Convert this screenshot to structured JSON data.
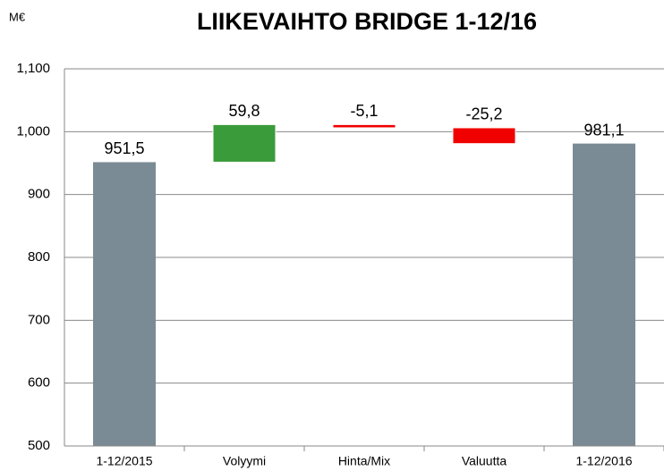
{
  "chart_data": {
    "type": "waterfall",
    "title": "LIIKEVAIHTO BRIDGE 1-12/16",
    "y_label": "M€",
    "categories": [
      "1-12/2015",
      "Volyymi",
      "Hinta/Mix",
      "Valuutta",
      "1-12/2016"
    ],
    "values": [
      951.5,
      59.8,
      -5.1,
      -25.2,
      981.1
    ],
    "value_labels": [
      "951,5",
      "59,8",
      "-5,1",
      "-25,2",
      "981,1"
    ],
    "totals": [
      true,
      false,
      false,
      false,
      true
    ],
    "colors": {
      "total": "#7b8b95",
      "increase": "#3a9b3a",
      "decrease": "#f00000"
    },
    "ylim": [
      500,
      1100
    ],
    "yticks": [
      500,
      600,
      700,
      800,
      900,
      {
        "value": 1000,
        "label": "1,000"
      },
      {
        "value": 1100,
        "label": "1,100"
      }
    ],
    "grid": true
  }
}
